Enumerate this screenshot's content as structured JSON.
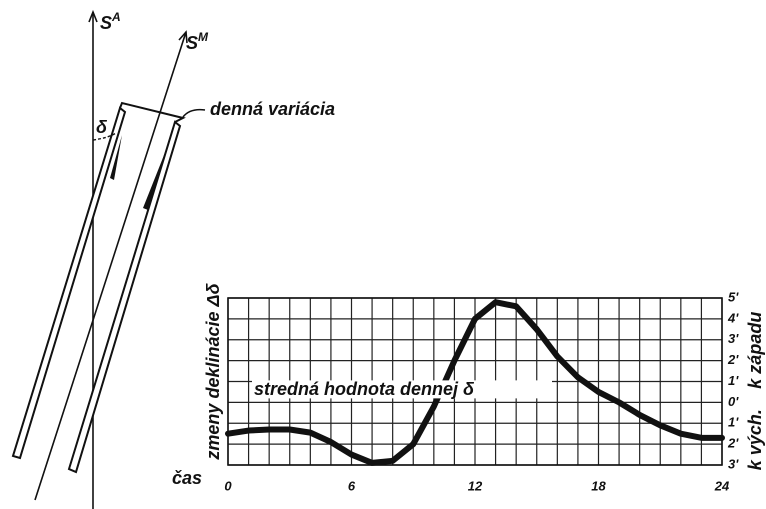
{
  "diagram": {
    "geographic_north": {
      "letter": "S",
      "sup": "A"
    },
    "magnetic_north": {
      "letter": "S",
      "sup": "M"
    },
    "angle": "δ",
    "variation": "denná variácia"
  },
  "chart_data": {
    "type": "line",
    "ylabel": "zmeny deklinácie Δδ",
    "xlabel": "čas",
    "west_label": "k západu",
    "east_label": "k vých.",
    "mean_label": "stredná hodnota dennej δ",
    "color": "#111111",
    "x": [
      0,
      1,
      2,
      3,
      4,
      5,
      6,
      7,
      8,
      9,
      10,
      11,
      12,
      13,
      14,
      15,
      16,
      17,
      18,
      19,
      20,
      21,
      22,
      23,
      24
    ],
    "values": [
      -1.5,
      -1.35,
      -1.3,
      -1.3,
      -1.45,
      -1.9,
      -2.5,
      -2.9,
      -2.8,
      -2.0,
      -0.2,
      2.0,
      4.0,
      4.8,
      4.6,
      3.5,
      2.2,
      1.2,
      0.5,
      0.0,
      -0.6,
      -1.1,
      -1.5,
      -1.7,
      -1.7
    ],
    "xlim": [
      0,
      24
    ],
    "xticks": [
      0,
      6,
      12,
      18,
      24
    ],
    "ylim": [
      -3,
      5
    ],
    "yticks": [
      {
        "value": 5,
        "label": "5'"
      },
      {
        "value": 4,
        "label": "4'"
      },
      {
        "value": 3,
        "label": "3'"
      },
      {
        "value": 2,
        "label": "2'"
      },
      {
        "value": 1,
        "label": "1'"
      },
      {
        "value": 0,
        "label": "0'"
      },
      {
        "value": -1,
        "label": "1'"
      },
      {
        "value": -2,
        "label": "2'"
      },
      {
        "value": -3,
        "label": "3'"
      }
    ],
    "grid": true
  }
}
